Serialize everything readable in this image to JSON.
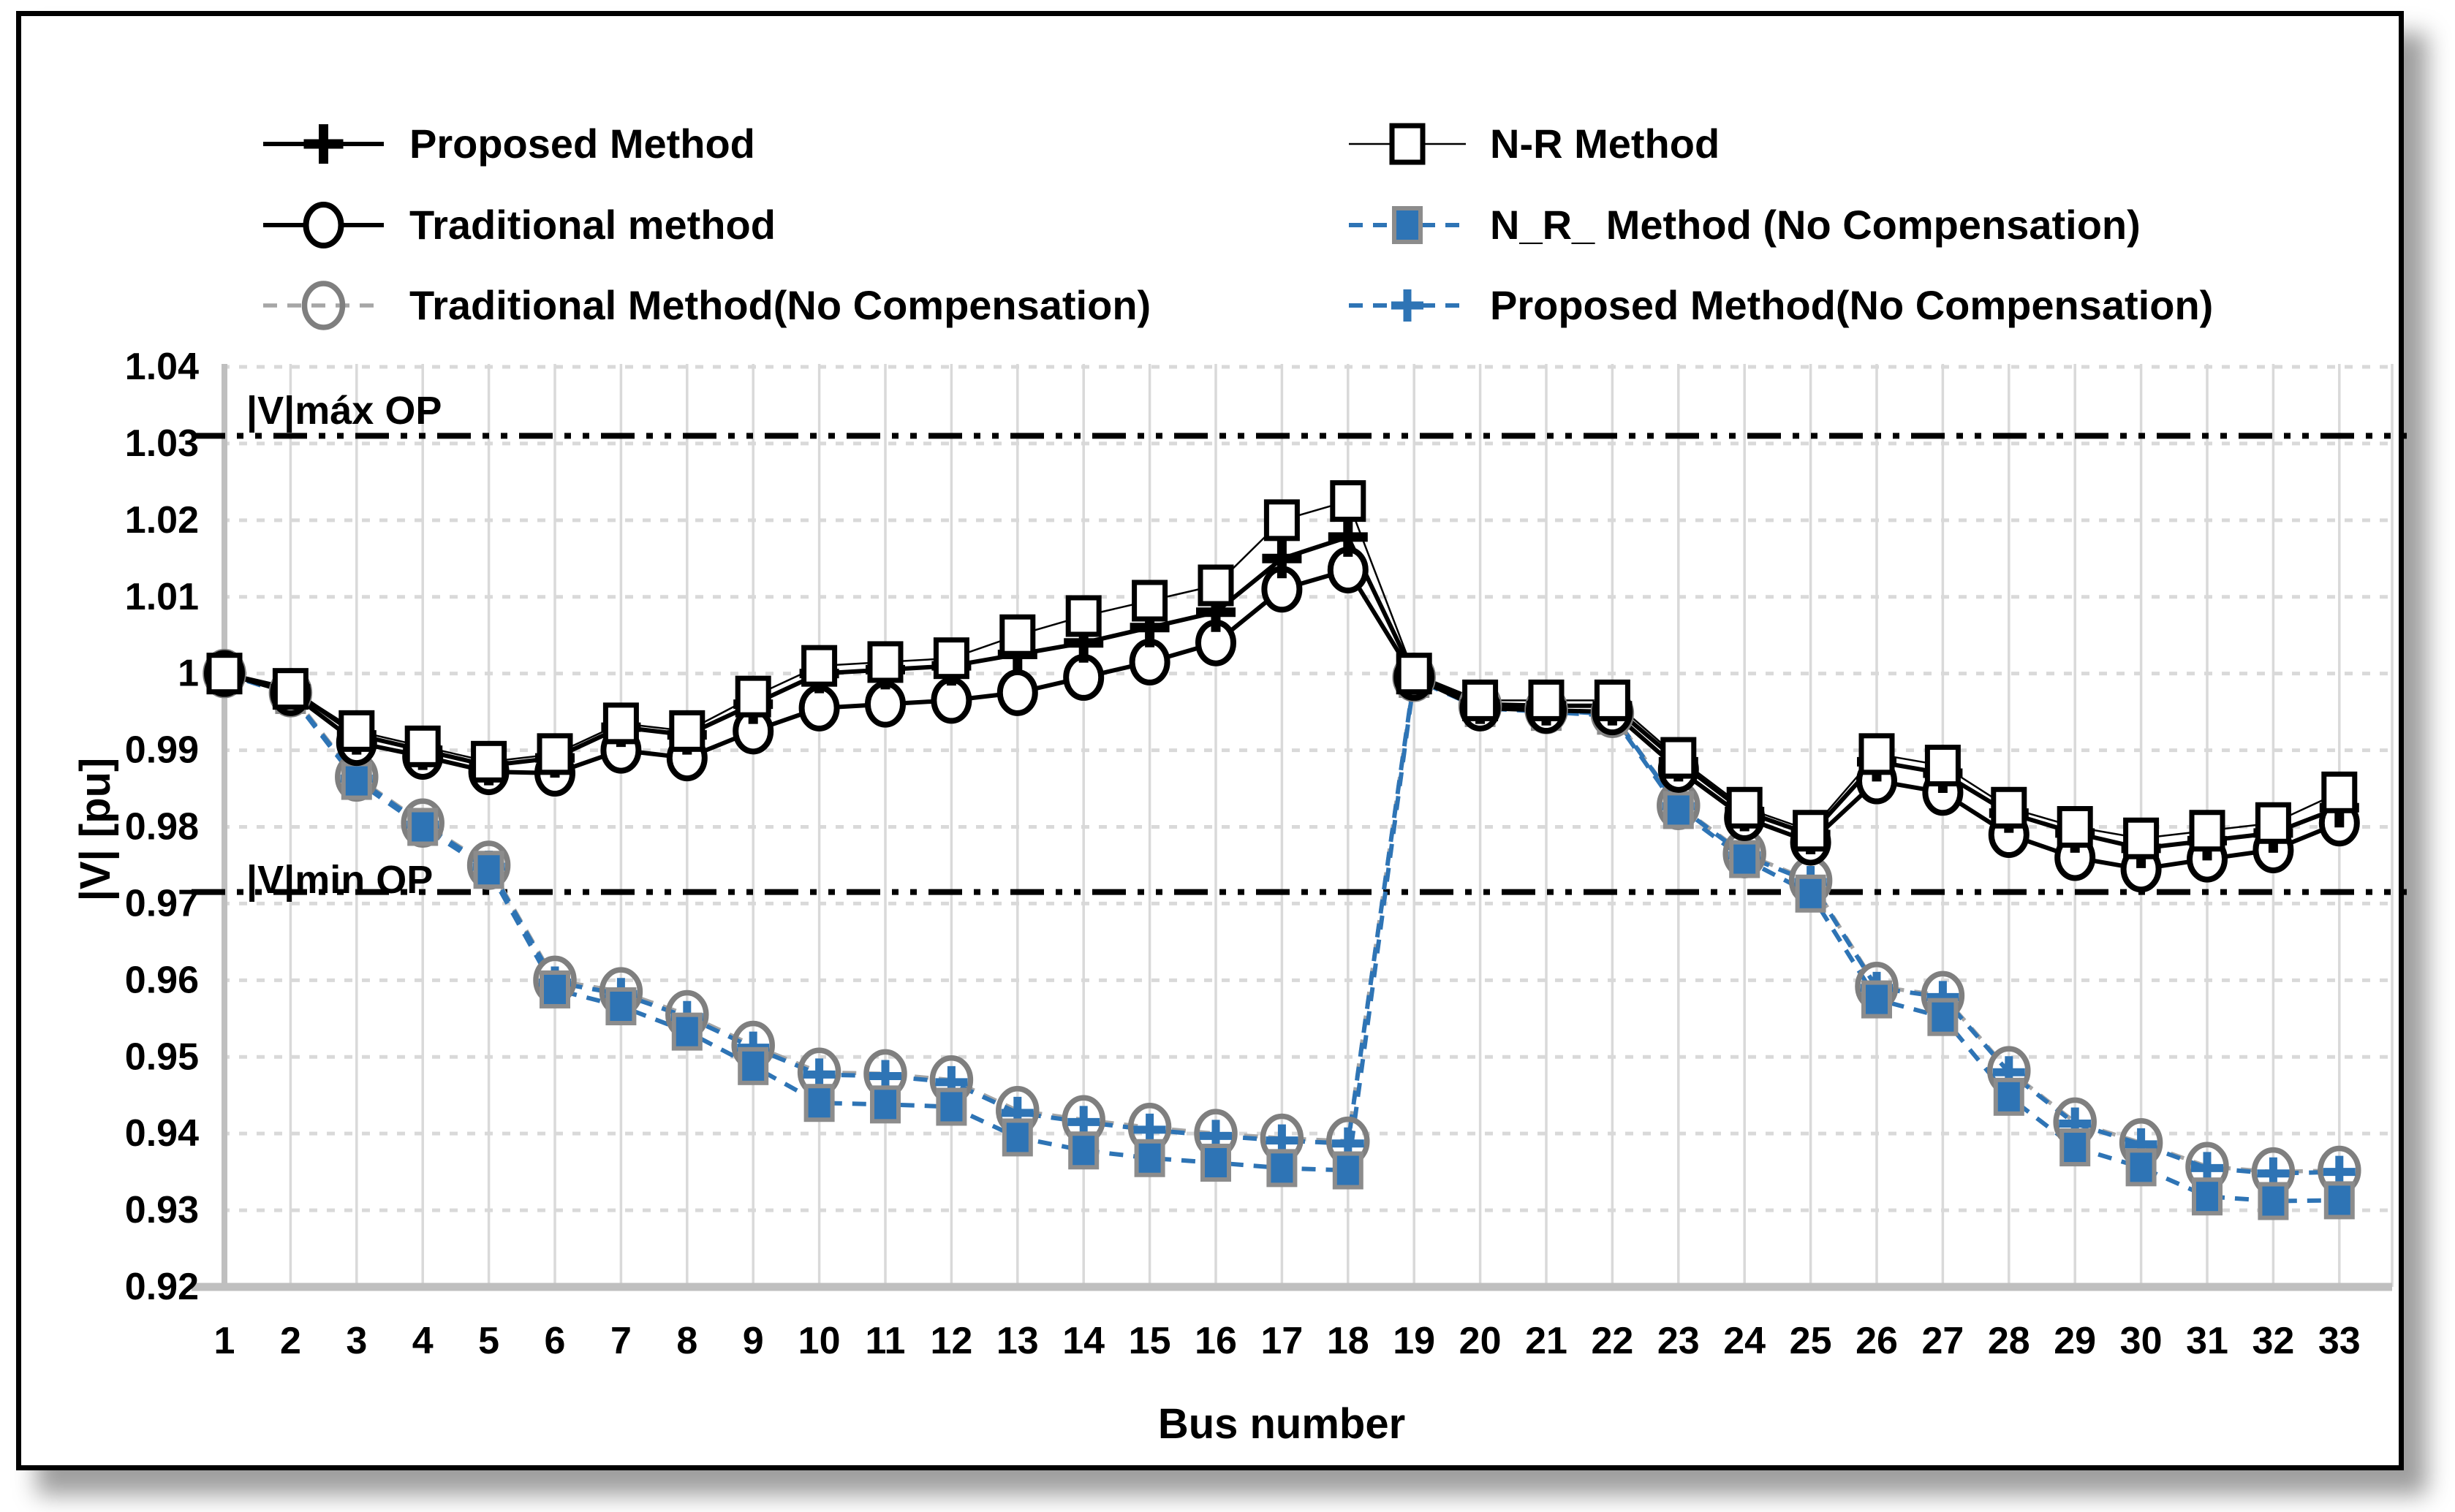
{
  "chart_data": {
    "type": "line",
    "title": "",
    "xlabel": "Bus number",
    "ylabel": "|V| [pu]",
    "x": [
      1,
      2,
      3,
      4,
      5,
      6,
      7,
      8,
      9,
      10,
      11,
      12,
      13,
      14,
      15,
      16,
      17,
      18,
      19,
      20,
      21,
      22,
      23,
      24,
      25,
      26,
      27,
      28,
      29,
      30,
      31,
      32,
      33
    ],
    "ylim": [
      0.92,
      1.04
    ],
    "ytick_labels": [
      "1.04",
      "1.03",
      "1.02",
      "1.01",
      "1",
      "0.99",
      "0.98",
      "0.97",
      "0.96",
      "0.95",
      "0.94",
      "0.93",
      "0.92"
    ],
    "ytick_values": [
      1.04,
      1.03,
      1.02,
      1.01,
      1.0,
      0.99,
      0.98,
      0.97,
      0.96,
      0.95,
      0.94,
      0.93,
      0.92
    ],
    "grid": true,
    "legend_position": "top",
    "colors": {
      "black": "#000000",
      "blue": "#2E74B5",
      "gray_line": "#A6A6A6",
      "gray_marker": "#7F7F7F",
      "gridline": "#D9D9D9",
      "axis": "#BFBFBF"
    },
    "annotations": [
      {
        "label": "|V|máx OP",
        "value": 1.031
      },
      {
        "label": "|V|min OP",
        "value": 0.9715
      }
    ],
    "series": [
      {
        "id": "traditional_nc",
        "name": "Traditional Method(No Compensation)",
        "color": "#A6A6A6",
        "line_style": "dashed",
        "marker": "circle-gray-open-icon",
        "values": [
          1.0,
          0.9975,
          0.9865,
          0.9805,
          0.975,
          0.96,
          0.9585,
          0.9555,
          0.9515,
          0.948,
          0.9478,
          0.947,
          0.943,
          0.9418,
          0.9408,
          0.94,
          0.9394,
          0.939,
          0.9995,
          0.9958,
          0.9953,
          0.9948,
          0.9828,
          0.9765,
          0.973,
          0.9592,
          0.958,
          0.9482,
          0.9415,
          0.9388,
          0.9357,
          0.935,
          0.9352
        ]
      },
      {
        "id": "proposed_nc",
        "name": "Proposed Method(No Compensation)",
        "color": "#2E74B5",
        "line_style": "dashed",
        "marker": "plus-blue-icon",
        "values": [
          1.0,
          0.9973,
          0.9863,
          0.9803,
          0.9748,
          0.9597,
          0.9582,
          0.9552,
          0.9512,
          0.9477,
          0.9475,
          0.9467,
          0.9427,
          0.9415,
          0.9405,
          0.9397,
          0.9391,
          0.9387,
          0.9995,
          0.9957,
          0.9952,
          0.9947,
          0.9827,
          0.9763,
          0.9728,
          0.959,
          0.9578,
          0.948,
          0.9413,
          0.9386,
          0.9355,
          0.9348,
          0.935
        ]
      },
      {
        "id": "nr_nc",
        "name": "N_R_ Method (No Compensation)",
        "color": "#2E74B5",
        "line_style": "dashed",
        "marker": "square-blue-filled-icon",
        "values": [
          1.0,
          0.9972,
          0.986,
          0.98,
          0.9744,
          0.9588,
          0.9566,
          0.9533,
          0.9488,
          0.944,
          0.9438,
          0.9435,
          0.9395,
          0.9378,
          0.9368,
          0.9362,
          0.9355,
          0.9352,
          0.9993,
          0.9955,
          0.995,
          0.9945,
          0.9822,
          0.9758,
          0.9713,
          0.9575,
          0.9552,
          0.9448,
          0.9382,
          0.9356,
          0.9318,
          0.9312,
          0.9313
        ]
      },
      {
        "id": "traditional",
        "name": "Traditional method",
        "color": "#000000",
        "line_style": "solid",
        "marker": "circle-open-icon",
        "values": [
          1.0,
          0.9975,
          0.991,
          0.9892,
          0.9872,
          0.987,
          0.99,
          0.989,
          0.9925,
          0.9955,
          0.996,
          0.9965,
          0.9975,
          0.9995,
          1.0015,
          1.004,
          1.011,
          1.0135,
          0.9995,
          0.9955,
          0.9952,
          0.995,
          0.9875,
          0.9812,
          0.978,
          0.986,
          0.9845,
          0.979,
          0.976,
          0.9745,
          0.9758,
          0.977,
          0.9805
        ]
      },
      {
        "id": "proposed",
        "name": "Proposed Method",
        "color": "#000000",
        "line_style": "solid",
        "marker": "plus-black-icon",
        "values": [
          1.0,
          0.998,
          0.992,
          0.99,
          0.988,
          0.989,
          0.993,
          0.992,
          0.996,
          1.0,
          1.0005,
          1.001,
          1.0025,
          1.004,
          1.006,
          1.008,
          1.015,
          1.0178,
          0.9998,
          0.996,
          0.9958,
          0.9958,
          0.9885,
          0.982,
          0.979,
          0.9885,
          0.987,
          0.9818,
          0.9792,
          0.9772,
          0.9782,
          0.9792,
          0.9825
        ]
      },
      {
        "id": "nr",
        "name": "N-R Method",
        "color": "#000000",
        "line_style": "thin-solid",
        "marker": "square-open-icon",
        "values": [
          1.0,
          0.998,
          0.9925,
          0.9905,
          0.9885,
          0.9895,
          0.9935,
          0.9925,
          0.997,
          1.001,
          1.0015,
          1.002,
          1.005,
          1.0075,
          1.0095,
          1.0115,
          1.02,
          1.0225,
          1.0,
          0.9965,
          0.9965,
          0.9965,
          0.989,
          0.9825,
          0.9795,
          0.9895,
          0.988,
          0.9825,
          0.98,
          0.9785,
          0.9795,
          0.9805,
          0.9845
        ]
      }
    ],
    "legend_columns": [
      [
        "proposed",
        "traditional",
        "traditional_nc"
      ],
      [
        "nr",
        "nr_nc",
        "proposed_nc"
      ]
    ]
  }
}
